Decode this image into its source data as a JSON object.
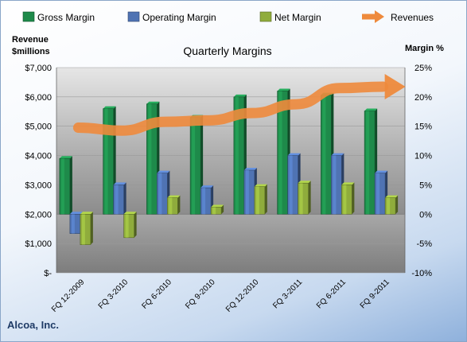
{
  "company": "Alcoa, Inc.",
  "chart_data": {
    "type": "bar",
    "title": "Quarterly Margins",
    "left_axis_label_line1": "Revenue",
    "left_axis_label_line2": "$millions",
    "right_axis_label": "Margin %",
    "categories": [
      "FQ 12-2009",
      "FQ 3-2010",
      "FQ 6-2010",
      "FQ 9-2010",
      "FQ 12-2010",
      "FQ 3-2011",
      "FQ 6-2011",
      "FQ 9-2011"
    ],
    "left_ylim": [
      0,
      7000
    ],
    "left_ticks": [
      "$-",
      "$1,000",
      "$2,000",
      "$3,000",
      "$4,000",
      "$5,000",
      "$6,000",
      "$7,000"
    ],
    "right_ylim": [
      -10,
      25
    ],
    "right_ticks": [
      "-10%",
      "-5%",
      "0%",
      "5%",
      "10%",
      "15%",
      "20%",
      "25%"
    ],
    "series": [
      {
        "name": "Gross Margin",
        "axis": "right",
        "color": "#1e8a4a",
        "values": [
          9.5,
          18,
          18.8,
          16.5,
          20,
          21,
          20.3,
          17.6
        ]
      },
      {
        "name": "Operating Margin",
        "axis": "right",
        "color": "#4f73b3",
        "values": [
          -3.3,
          5,
          7,
          4.5,
          7.5,
          10,
          10,
          7
        ]
      },
      {
        "name": "Net Margin",
        "axis": "right",
        "color": "#8fac3c",
        "values": [
          -5.2,
          -4,
          2.8,
          1.2,
          4.7,
          5.3,
          5,
          2.8
        ]
      },
      {
        "name": "Revenues",
        "axis": "left",
        "type": "line-arrow",
        "color": "#ee8a3c",
        "values": [
          4950,
          4850,
          5150,
          5200,
          5450,
          5750,
          6300,
          6350
        ]
      }
    ],
    "grid": true,
    "legend_position": "top"
  }
}
